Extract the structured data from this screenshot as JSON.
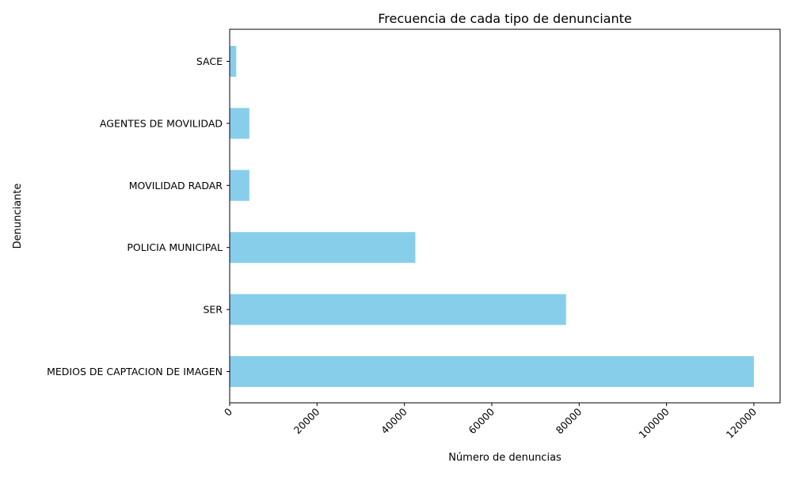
{
  "chart_data": {
    "type": "bar",
    "orientation": "horizontal",
    "title": "Frecuencia de cada tipo de denunciante",
    "xlabel": "Número de denuncias",
    "ylabel": "Denunciante",
    "categories": [
      "MEDIOS DE CAPTACION DE IMAGEN",
      "SER",
      "POLICIA MUNICIPAL",
      "MOVILIDAD RADAR",
      "AGENTES DE MOVILIDAD",
      "SACE"
    ],
    "values": [
      120000,
      77000,
      42500,
      4500,
      4500,
      1500
    ],
    "xlim": [
      0,
      126000
    ],
    "xticks": [
      0,
      20000,
      40000,
      60000,
      80000,
      100000,
      120000
    ],
    "xtick_labels": [
      "0",
      "20000",
      "40000",
      "60000",
      "80000",
      "100000",
      "120000"
    ],
    "bar_color": "#87CEEB",
    "grid": false,
    "legend": "none"
  }
}
